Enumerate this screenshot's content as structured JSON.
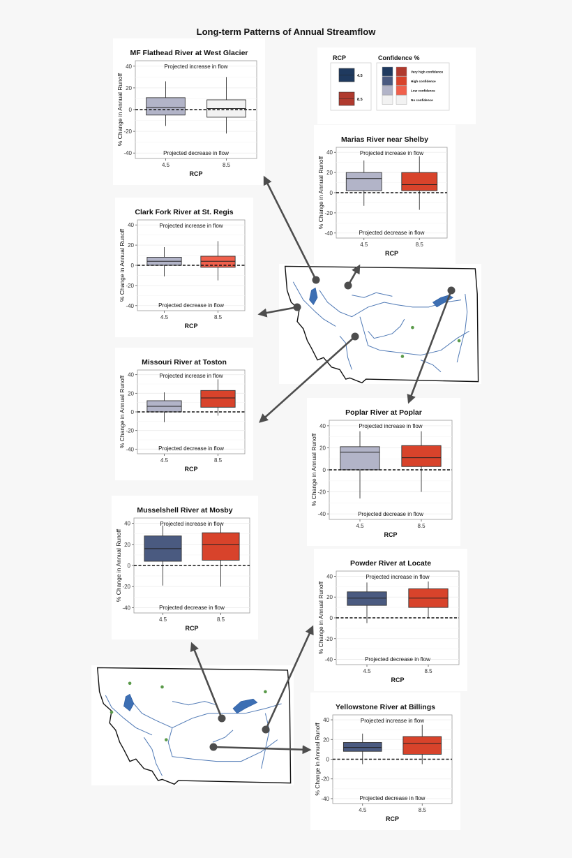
{
  "page": {
    "title": "Long-term Patterns of Annual Streamflow"
  },
  "legend": {
    "rcp_title": "RCP",
    "rcp_items": [
      {
        "label": "4.5",
        "color": "#1f3a5f"
      },
      {
        "label": "8.5",
        "color": "#b03a2e"
      }
    ],
    "confidence_title": "Confidence %",
    "confidence_items": [
      {
        "label": "Very high confidence",
        "blue": "#1f3a5f",
        "red": "#b03a2e"
      },
      {
        "label": "High confidence",
        "blue": "#4a5a80",
        "red": "#d8432b"
      },
      {
        "label": "Low confidence",
        "blue": "#b2b4c8",
        "red": "#f0604c"
      },
      {
        "label": "No confidence",
        "blue": "#f2f2f2",
        "red": "#f2f2f2"
      }
    ]
  },
  "chart_data": [
    {
      "type": "box",
      "title": "MF Flathead River at West Glacier",
      "xlabel": "RCP",
      "ylabel": "% Change in Annual Runoff",
      "ylim": [
        -45,
        45
      ],
      "yticks": [
        40,
        20,
        0,
        -20,
        -40
      ],
      "annotation_top": "Projected increase in flow",
      "annotation_bottom": "Projected decrease in flow",
      "categories": [
        "4.5",
        "8.5"
      ],
      "boxes": [
        {
          "min": -15,
          "q1": -5,
          "median": 2,
          "q3": 11,
          "max": 26,
          "color": "#b2b4c8"
        },
        {
          "min": -22,
          "q1": -7,
          "median": 1,
          "q3": 9,
          "max": 30,
          "color": "#f2f2f2"
        }
      ]
    },
    {
      "type": "box",
      "title": "Marias River near Shelby",
      "xlabel": "RCP",
      "ylabel": "% Change in Annual Runoff",
      "ylim": [
        -45,
        45
      ],
      "yticks": [
        40,
        20,
        0,
        -20,
        -40
      ],
      "annotation_top": "Projected increase in flow",
      "annotation_bottom": "Projected decrease in flow",
      "categories": [
        "4.5",
        "8.5"
      ],
      "boxes": [
        {
          "min": -13,
          "q1": 2,
          "median": 14,
          "q3": 20,
          "max": 32,
          "color": "#b2b4c8"
        },
        {
          "min": -17,
          "q1": 2,
          "median": 8,
          "q3": 20,
          "max": 36,
          "color": "#d8432b"
        }
      ]
    },
    {
      "type": "box",
      "title": "Clark Fork River at St. Regis",
      "xlabel": "RCP",
      "ylabel": "% Change in Annual Runoff",
      "ylim": [
        -45,
        45
      ],
      "yticks": [
        40,
        20,
        0,
        -20,
        -40
      ],
      "annotation_top": "Projected increase in flow",
      "annotation_bottom": "Projected decrease in flow",
      "categories": [
        "4.5",
        "8.5"
      ],
      "boxes": [
        {
          "min": -11,
          "q1": 0,
          "median": 4,
          "q3": 8,
          "max": 18,
          "color": "#b2b4c8"
        },
        {
          "min": -15,
          "q1": -2,
          "median": 4,
          "q3": 9,
          "max": 24,
          "color": "#f0604c"
        }
      ]
    },
    {
      "type": "box",
      "title": "Missouri River at Toston",
      "xlabel": "RCP",
      "ylabel": "% Change in Annual Runoff",
      "ylim": [
        -45,
        45
      ],
      "yticks": [
        40,
        20,
        0,
        -20,
        -40
      ],
      "annotation_top": "Projected increase in flow",
      "annotation_bottom": "Projected decrease in flow",
      "categories": [
        "4.5",
        "8.5"
      ],
      "boxes": [
        {
          "min": -11,
          "q1": 0,
          "median": 6,
          "q3": 12,
          "max": 21,
          "color": "#b2b4c8"
        },
        {
          "min": -4,
          "q1": 5,
          "median": 15,
          "q3": 23,
          "max": 35,
          "color": "#d8432b"
        }
      ]
    },
    {
      "type": "box",
      "title": "Poplar River at Poplar",
      "xlabel": "RCP",
      "ylabel": "% Change in Annual Runoff",
      "ylim": [
        -45,
        45
      ],
      "yticks": [
        40,
        20,
        0,
        -20,
        -40
      ],
      "annotation_top": "Projected increase in flow",
      "annotation_bottom": "Projected decrease in flow",
      "categories": [
        "4.5",
        "8.5"
      ],
      "boxes": [
        {
          "min": -26,
          "q1": 0,
          "median": 16,
          "q3": 21,
          "max": 35,
          "color": "#b2b4c8"
        },
        {
          "min": -20,
          "q1": 3,
          "median": 11,
          "q3": 22,
          "max": 35,
          "color": "#d8432b"
        }
      ]
    },
    {
      "type": "box",
      "title": "Musselshell River at Mosby",
      "xlabel": "RCP",
      "ylabel": "% Change in Annual Runoff",
      "ylim": [
        -45,
        45
      ],
      "yticks": [
        40,
        20,
        0,
        -20,
        -40
      ],
      "annotation_top": "Projected increase in flow",
      "annotation_bottom": "Projected decrease in flow",
      "categories": [
        "4.5",
        "8.5"
      ],
      "boxes": [
        {
          "min": -19,
          "q1": 4,
          "median": 16,
          "q3": 28,
          "max": 38,
          "color": "#4a5a80"
        },
        {
          "min": -20,
          "q1": 5,
          "median": 20,
          "q3": 31,
          "max": 38,
          "color": "#d8432b"
        }
      ]
    },
    {
      "type": "box",
      "title": "Powder River at Locate",
      "xlabel": "RCP",
      "ylabel": "% Change in Annual Runoff",
      "ylim": [
        -45,
        45
      ],
      "yticks": [
        40,
        20,
        0,
        -20,
        -40
      ],
      "annotation_top": "Projected increase in flow",
      "annotation_bottom": "Projected decrease in flow",
      "categories": [
        "4.5",
        "8.5"
      ],
      "boxes": [
        {
          "min": -5,
          "q1": 12,
          "median": 19,
          "q3": 25,
          "max": 34,
          "color": "#4a5a80"
        },
        {
          "min": 0,
          "q1": 10,
          "median": 19,
          "q3": 28,
          "max": 35,
          "color": "#d8432b"
        }
      ]
    },
    {
      "type": "box",
      "title": "Yellowstone River at Billings",
      "xlabel": "RCP",
      "ylabel": "% Change in Annual Runoff",
      "ylim": [
        -45,
        45
      ],
      "yticks": [
        40,
        20,
        0,
        -20,
        -40
      ],
      "annotation_top": "Projected increase in flow",
      "annotation_bottom": "Projected decrease in flow",
      "categories": [
        "4.5",
        "8.5"
      ],
      "boxes": [
        {
          "min": -5,
          "q1": 8,
          "median": 12,
          "q3": 17,
          "max": 26,
          "color": "#4a5a80"
        },
        {
          "min": -5,
          "q1": 5,
          "median": 16,
          "q3": 23,
          "max": 35,
          "color": "#d8432b"
        }
      ]
    }
  ]
}
